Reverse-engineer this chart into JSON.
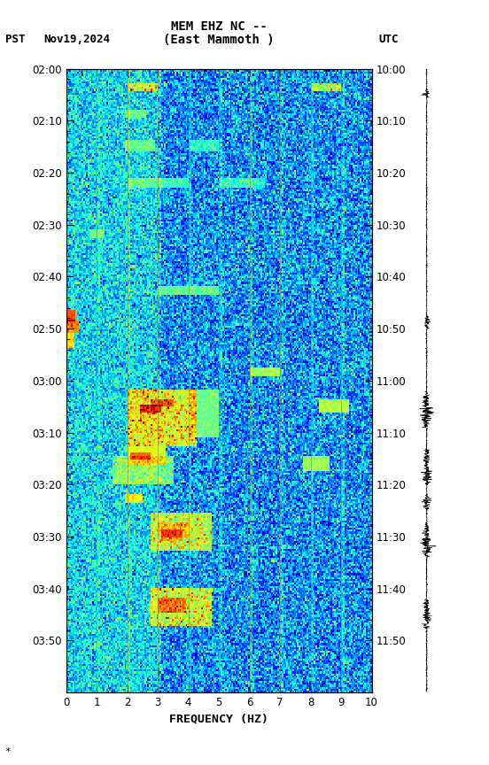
{
  "title_line1": "MEM EHZ NC --",
  "title_line2": "(East Mammoth )",
  "label_left": "PST",
  "label_date": "Nov19,2024",
  "label_right": "UTC",
  "xlabel": "FREQUENCY (HZ)",
  "freq_min": 0,
  "freq_max": 10,
  "pst_labels": [
    "02:00",
    "02:10",
    "02:20",
    "02:30",
    "02:40",
    "02:50",
    "03:00",
    "03:10",
    "03:20",
    "03:30",
    "03:40",
    "03:50"
  ],
  "utc_labels": [
    "10:00",
    "10:10",
    "10:20",
    "10:30",
    "10:40",
    "10:50",
    "11:00",
    "11:10",
    "11:20",
    "11:30",
    "11:40",
    "11:50"
  ],
  "background_color": "#ffffff",
  "note": "*",
  "fig_width": 5.52,
  "fig_height": 8.64,
  "gridline_color": "#888844",
  "gridline_alpha": 0.7
}
